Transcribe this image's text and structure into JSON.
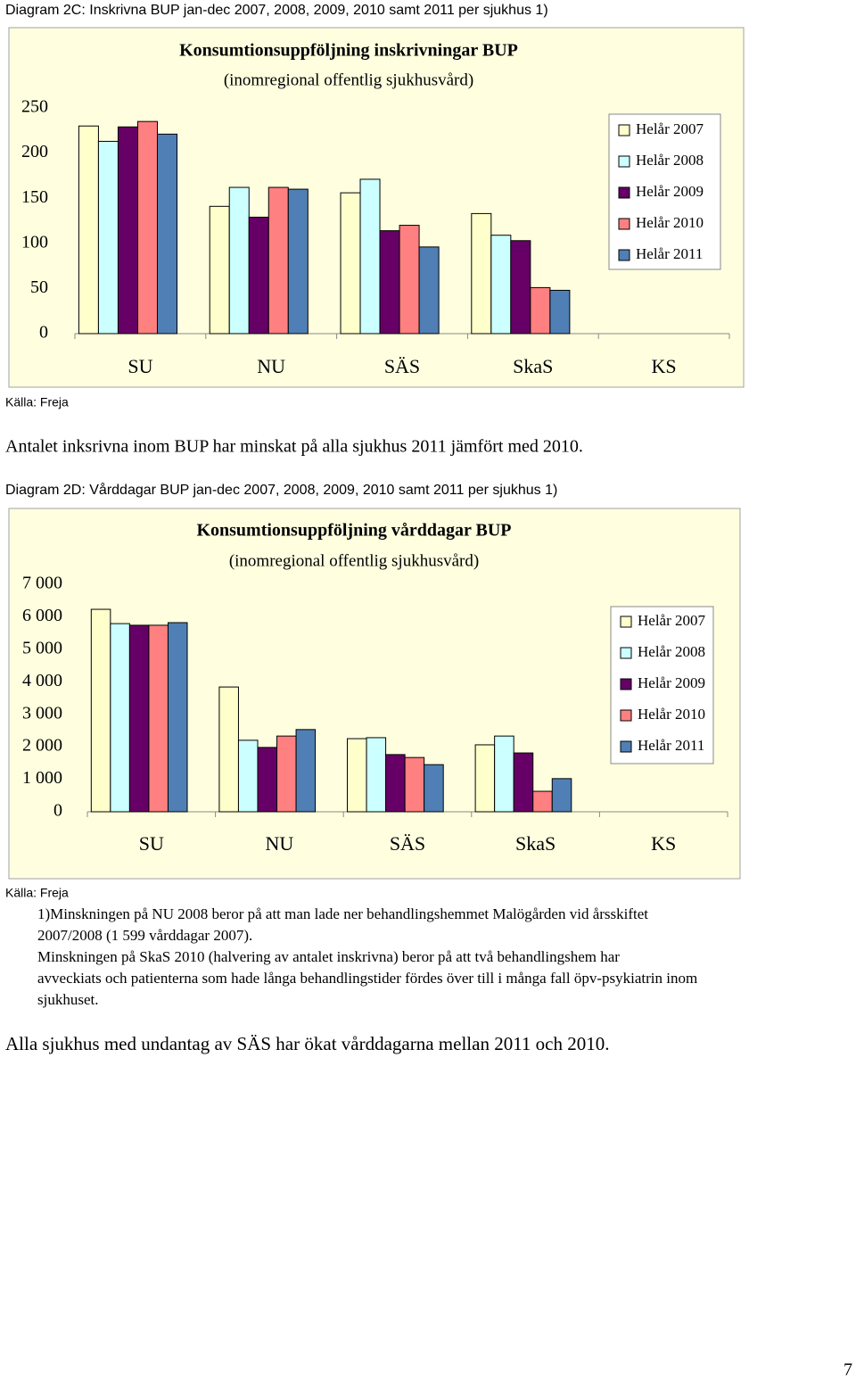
{
  "document": {
    "caption_2c": "Diagram 2C: Inskrivna BUP jan-dec 2007, 2008, 2009, 2010 samt 2011 per sjukhus 1)",
    "source_2c": "Källa: Freja",
    "comment_2c": "Antalet inksrivna inom BUP har minskat på alla sjukhus 2011 jämfört med 2010.",
    "caption_2d": "Diagram 2D: Vårddagar BUP jan-dec 2007, 2008, 2009, 2010 samt 2011 per sjukhus  1)",
    "source_2d": "Källa: Freja",
    "footnote_lines": [
      "1)Minskningen på NU 2008 beror på att man lade ner behandlingshemmet Malögården vid årsskiftet",
      "2007/2008 (1 599 vårddagar 2007).",
      "Minskningen på SkaS 2010 (halvering av antalet inskrivna) beror på att två behandlingshem har",
      "avveckiats och patienterna som hade långa behandlingstider fördes över till i många fall öpv-psykiatrin inom",
      "sjukhuset."
    ],
    "conclusion": "Alla sjukhus med undantag av SÄS har ökat vårddagarna mellan 2011 och 2010.",
    "page_number": "7"
  },
  "chart_data": [
    {
      "type": "bar",
      "title": "Konsumtionsuppföljning inskrivningar BUP",
      "subtitle": "(inomregional offentlig sjukhusvård)",
      "categories": [
        "SU",
        "NU",
        "SÄS",
        "SkaS",
        "KS"
      ],
      "series": [
        {
          "name": "Helår 2007",
          "color": "#ffffcc",
          "values": [
            230,
            141,
            156,
            133,
            null
          ]
        },
        {
          "name": "Helår 2008",
          "color": "#ccffff",
          "values": [
            213,
            162,
            171,
            109,
            null
          ]
        },
        {
          "name": "Helår 2009",
          "color": "#660066",
          "values": [
            229,
            129,
            114,
            103,
            null
          ]
        },
        {
          "name": "Helår 2010",
          "color": "#ff8080",
          "values": [
            235,
            162,
            120,
            51,
            null
          ]
        },
        {
          "name": "Helår 2011",
          "color": "#4f7fb5",
          "values": [
            221,
            160,
            96,
            48,
            null
          ]
        }
      ],
      "ylim": [
        0,
        250
      ],
      "yticks": [
        0,
        50,
        100,
        150,
        200,
        250
      ],
      "legend": "right"
    },
    {
      "type": "bar",
      "title": "Konsumtionsuppföljning vårddagar BUP",
      "subtitle": "(inomregional offentlig sjukhusvård)",
      "categories": [
        "SU",
        "NU",
        "SÄS",
        "SkaS",
        "KS"
      ],
      "series": [
        {
          "name": "Helår 2007",
          "color": "#ffffcc",
          "values": [
            6230,
            3840,
            2250,
            2060,
            null
          ]
        },
        {
          "name": "Helår 2008",
          "color": "#ccffff",
          "values": [
            5790,
            2200,
            2280,
            2330,
            null
          ]
        },
        {
          "name": "Helår 2009",
          "color": "#660066",
          "values": [
            5740,
            1980,
            1760,
            1810,
            null
          ]
        },
        {
          "name": "Helår 2010",
          "color": "#ff8080",
          "values": [
            5740,
            2330,
            1670,
            630,
            null
          ]
        },
        {
          "name": "Helår 2011",
          "color": "#4f7fb5",
          "values": [
            5820,
            2530,
            1450,
            1020,
            null
          ]
        }
      ],
      "ylim": [
        0,
        7000
      ],
      "yticks": [
        0,
        {
          "value": 1000,
          "label": "1 000"
        },
        {
          "value": 2000,
          "label": "2 000"
        },
        {
          "value": 3000,
          "label": "3 000"
        },
        {
          "value": 4000,
          "label": "4 000"
        },
        {
          "value": 5000,
          "label": "5 000"
        },
        {
          "value": 6000,
          "label": "6 000"
        },
        {
          "value": 7000,
          "label": "7 000"
        }
      ],
      "legend": "right"
    }
  ]
}
